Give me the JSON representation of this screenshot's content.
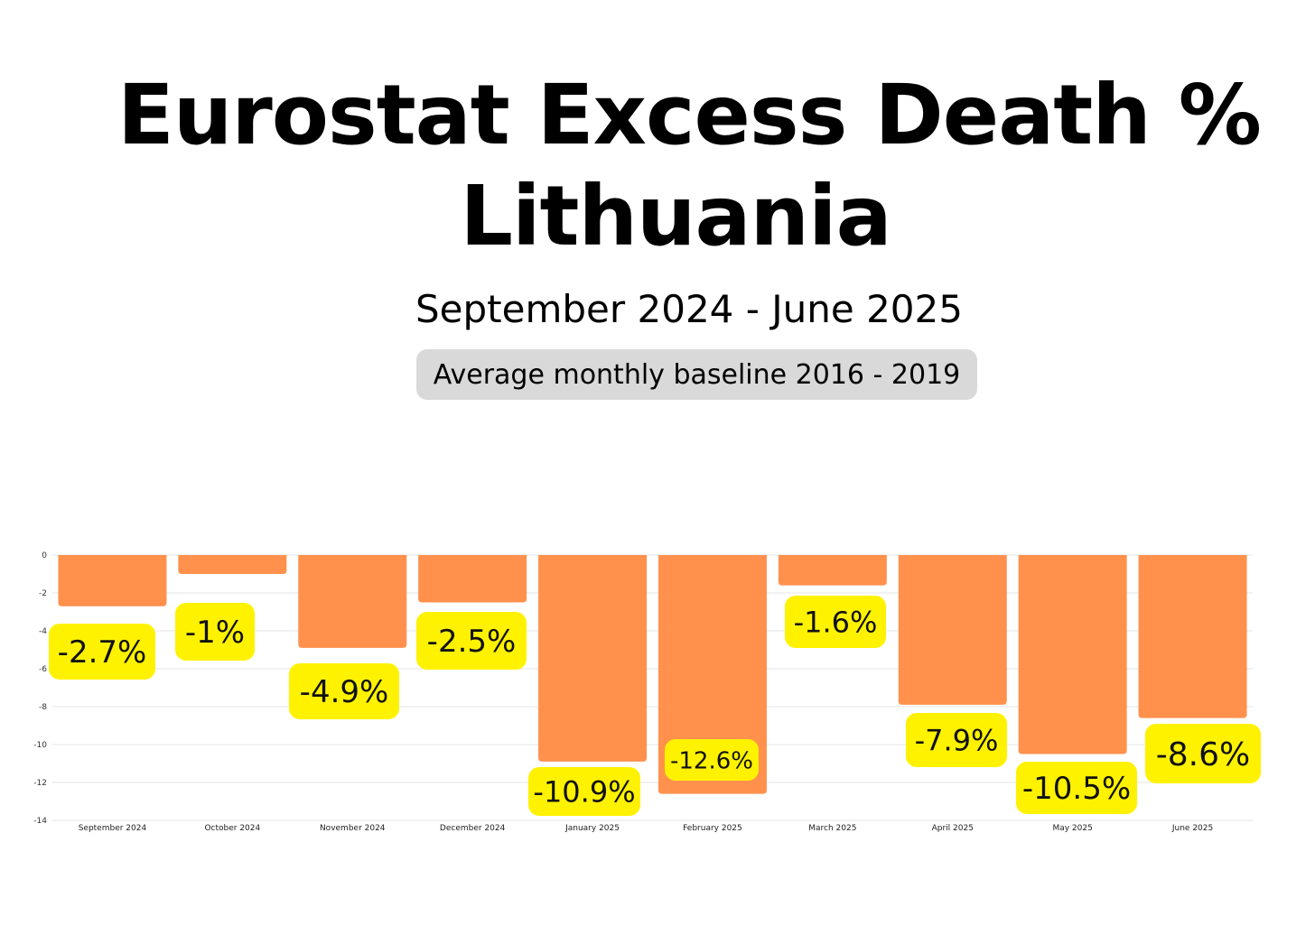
{
  "title_line1": "Eurostat Excess Death %",
  "title_line2": "Lithuania",
  "subtitle": "September 2024 - June 2025",
  "baseline_note": "Average monthly baseline 2016 - 2019",
  "colors": {
    "bar": "#ff914d",
    "label_bg": "#fff200",
    "grid": "#e6e6e6"
  },
  "chart_data": {
    "type": "bar",
    "title": "Eurostat Excess Death % Lithuania",
    "categories": [
      "September 2024",
      "October 2024",
      "November 2024",
      "December 2024",
      "January 2025",
      "February 2025",
      "March 2025",
      "April 2025",
      "May 2025",
      "June 2025"
    ],
    "values": [
      -2.7,
      -1,
      -4.9,
      -2.5,
      -10.9,
      -12.6,
      -1.6,
      -7.9,
      -10.5,
      -8.6
    ],
    "data_labels": [
      "-2.7%",
      "-1%",
      "-4.9%",
      "-2.5%",
      "-10.9%",
      "-12.6%",
      "-1.6%",
      "-7.9%",
      "-10.5%",
      "-8.6%"
    ],
    "ylim": [
      -14,
      0
    ],
    "yticks": [
      0,
      -2,
      -4,
      -6,
      -8,
      -10,
      -12,
      -14
    ],
    "xlabel": "",
    "ylabel": "",
    "grid": true
  }
}
